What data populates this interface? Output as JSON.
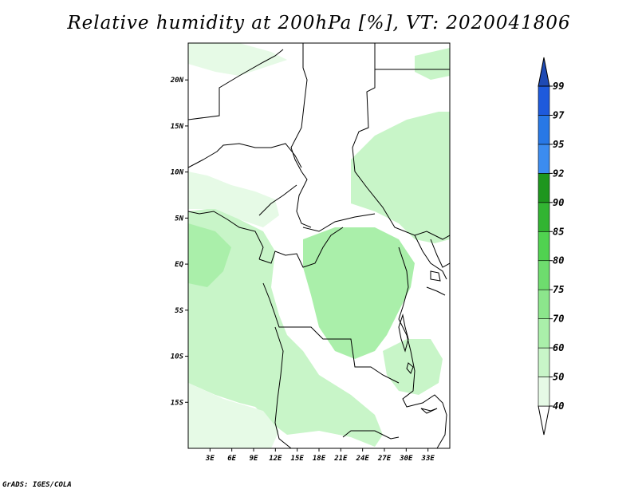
{
  "title": "Relative humidity at 200hPa [%], VT: 2020041806",
  "credit": "GrADS: IGES/COLA",
  "map": {
    "lon_range": [
      0,
      36
    ],
    "lat_range": [
      -20,
      24
    ],
    "lon_ticks": [
      {
        "value": 3,
        "label": "3E"
      },
      {
        "value": 6,
        "label": "6E"
      },
      {
        "value": 9,
        "label": "9E"
      },
      {
        "value": 12,
        "label": "12E"
      },
      {
        "value": 15,
        "label": "15E"
      },
      {
        "value": 18,
        "label": "18E"
      },
      {
        "value": 21,
        "label": "21E"
      },
      {
        "value": 24,
        "label": "24E"
      },
      {
        "value": 27,
        "label": "27E"
      },
      {
        "value": 30,
        "label": "30E"
      },
      {
        "value": 33,
        "label": "33E"
      }
    ],
    "lat_ticks": [
      {
        "value": 20,
        "label": "20N"
      },
      {
        "value": 15,
        "label": "15N"
      },
      {
        "value": 10,
        "label": "10N"
      },
      {
        "value": 5,
        "label": "5N"
      },
      {
        "value": 0,
        "label": "EQ"
      },
      {
        "value": -5,
        "label": "5S"
      },
      {
        "value": -10,
        "label": "10S"
      },
      {
        "value": -15,
        "label": "15S"
      }
    ]
  },
  "colorbar": {
    "levels": [
      "40",
      "50",
      "60",
      "70",
      "75",
      "80",
      "85",
      "90",
      "92",
      "95",
      "97",
      "99"
    ],
    "colors": [
      "#ffffff",
      "#e6fae6",
      "#c8f5c8",
      "#aaefaa",
      "#8ce68c",
      "#6edc6e",
      "#50d250",
      "#32b432",
      "#1e961e",
      "#3c8cf0",
      "#2878e6",
      "#1e5adc",
      "#1e4ab4"
    ]
  }
}
